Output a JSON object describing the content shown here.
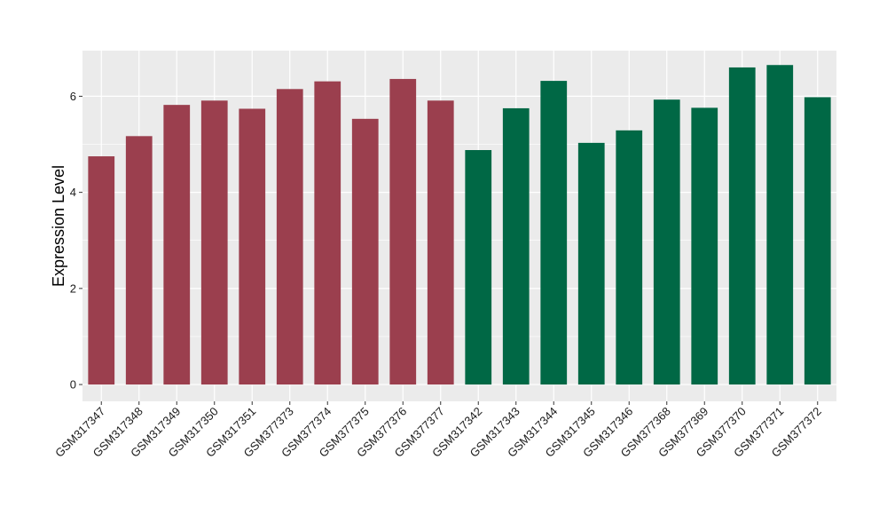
{
  "chart_data": {
    "type": "bar",
    "title": "",
    "xlabel": "",
    "ylabel": "Expression Level",
    "ylim": [
      -0.35,
      6.95
    ],
    "yticks": [
      0,
      2,
      4,
      6
    ],
    "grid": true,
    "legend": "none",
    "panel_background": "#ebebeb",
    "gridline_color": "#ffffff",
    "categories": [
      "GSM317347",
      "GSM317348",
      "GSM317349",
      "GSM317350",
      "GSM317351",
      "GSM377373",
      "GSM377374",
      "GSM377375",
      "GSM377376",
      "GSM377377",
      "GSM317342",
      "GSM317343",
      "GSM317344",
      "GSM317345",
      "GSM317346",
      "GSM377368",
      "GSM377369",
      "GSM377370",
      "GSM377371",
      "GSM377372"
    ],
    "values": [
      4.75,
      5.17,
      5.82,
      5.91,
      5.74,
      6.15,
      6.31,
      5.53,
      6.36,
      5.91,
      4.88,
      5.75,
      6.32,
      5.03,
      5.29,
      5.93,
      5.76,
      6.6,
      6.65,
      5.98
    ],
    "bar_colors": [
      "#9b3f4e",
      "#9b3f4e",
      "#9b3f4e",
      "#9b3f4e",
      "#9b3f4e",
      "#9b3f4e",
      "#9b3f4e",
      "#9b3f4e",
      "#9b3f4e",
      "#9b3f4e",
      "#006845",
      "#006845",
      "#006845",
      "#006845",
      "#006845",
      "#006845",
      "#006845",
      "#006845",
      "#006845",
      "#006845"
    ]
  }
}
